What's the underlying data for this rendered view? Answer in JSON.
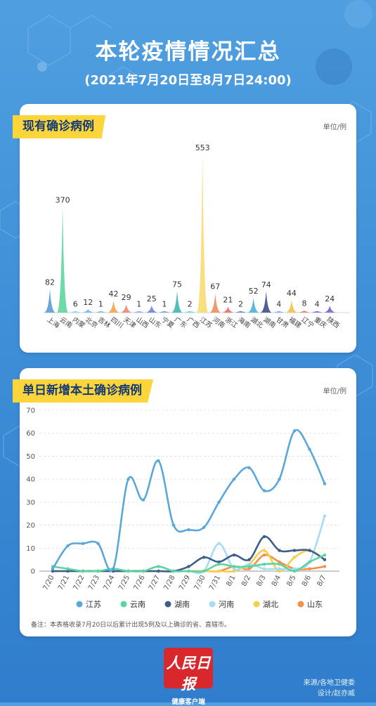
{
  "header": {
    "title": "本轮疫情情况汇总",
    "subtitle": "(2021年7月20日至8月7日24:00)"
  },
  "panel1": {
    "banner": "现有确诊病例",
    "unit": "单位/例"
  },
  "panel2": {
    "banner": "单日新增本土确诊病例",
    "unit": "单位/例",
    "footnote": "备注：本表格收录7月20日以后累计出现5例及以上确诊的省、直辖市。"
  },
  "logo": {
    "main": "人民日报",
    "sub": "健康客户端"
  },
  "credits": {
    "source": "来源/各地卫健委",
    "design": "设计/赵亦威"
  },
  "colors": {
    "background": "#4a98de",
    "banner": "#fcd53a",
    "banner_text": "#133a77",
    "logo": "#d8272d"
  },
  "chart_data": [
    {
      "type": "area",
      "title": "现有确诊病例",
      "unit": "单位/例",
      "categories": [
        "上海",
        "云南",
        "内蒙",
        "北京",
        "吉林",
        "四川",
        "天津",
        "山西",
        "山东",
        "宁夏",
        "广东",
        "广西",
        "江苏",
        "河南",
        "浙江",
        "海南",
        "湖北",
        "湖南",
        "甘肃",
        "福建",
        "辽宁",
        "重庆",
        "陕西"
      ],
      "values": [
        82,
        370,
        6,
        12,
        1,
        42,
        29,
        1,
        25,
        1,
        75,
        2,
        553,
        67,
        21,
        2,
        52,
        74,
        4,
        44,
        8,
        4,
        24
      ],
      "colors": [
        "#5b9bd5",
        "#5fd69d",
        "#8fd3ea",
        "#79b7e8",
        "#8ab8cf",
        "#f4a24a",
        "#f08574",
        "#9ba9ee",
        "#6e83d8",
        "#8a98d4",
        "#3fb8b0",
        "#6fd3df",
        "#f8dc72",
        "#ee8f5c",
        "#ec6d6d",
        "#5f89ce",
        "#4ab5d4",
        "#3f4f86",
        "#8ea4ee",
        "#f2c14e",
        "#f27e78",
        "#7c6ee0",
        "#7c5ed6"
      ]
    },
    {
      "type": "line",
      "title": "单日新增本土确诊病例",
      "unit": "单位/例",
      "x": [
        "7/20",
        "7/21",
        "7/22",
        "7/23",
        "7/24",
        "7/25",
        "7/26",
        "7/27",
        "7/28",
        "7/29",
        "7/30",
        "7/31",
        "8/1",
        "8/2",
        "8/3",
        "8/4",
        "8/5",
        "8/6",
        "8/7"
      ],
      "ylim": [
        0,
        70
      ],
      "yticks": [
        0,
        10,
        20,
        30,
        40,
        50,
        60,
        70
      ],
      "series": [
        {
          "name": "江苏",
          "color": "#5aa7dc",
          "values": [
            1,
            11,
            12,
            12,
            1,
            40,
            31,
            48,
            20,
            18,
            19,
            30,
            40,
            45,
            35,
            40,
            61,
            53,
            38
          ]
        },
        {
          "name": "云南",
          "color": "#5cd4a0",
          "values": [
            2,
            1,
            0,
            0,
            1,
            0,
            0,
            2,
            0,
            0,
            0,
            3,
            2,
            2,
            3,
            3,
            0,
            4,
            7
          ]
        },
        {
          "name": "湖南",
          "color": "#3e5d8a",
          "values": [
            0,
            0,
            0,
            0,
            0,
            0,
            0,
            0,
            0,
            2,
            6,
            4,
            7,
            5,
            15,
            9,
            9,
            9,
            5
          ]
        },
        {
          "name": "河南",
          "color": "#a9dcf3",
          "values": [
            0,
            0,
            0,
            0,
            0,
            0,
            0,
            0,
            0,
            0,
            0,
            12,
            1,
            3,
            1,
            1,
            1,
            4,
            24
          ]
        },
        {
          "name": "湖北",
          "color": "#f7cf47",
          "values": [
            0,
            0,
            0,
            0,
            0,
            0,
            0,
            0,
            0,
            0,
            0,
            0,
            0,
            3,
            9,
            0,
            6,
            9,
            5
          ]
        },
        {
          "name": "山东",
          "color": "#f4904a",
          "values": [
            0,
            0,
            0,
            0,
            0,
            0,
            0,
            0,
            0,
            0,
            0,
            0,
            2,
            1,
            7,
            4,
            1,
            1,
            2
          ]
        }
      ],
      "grid": true,
      "legend": "bottom"
    }
  ]
}
